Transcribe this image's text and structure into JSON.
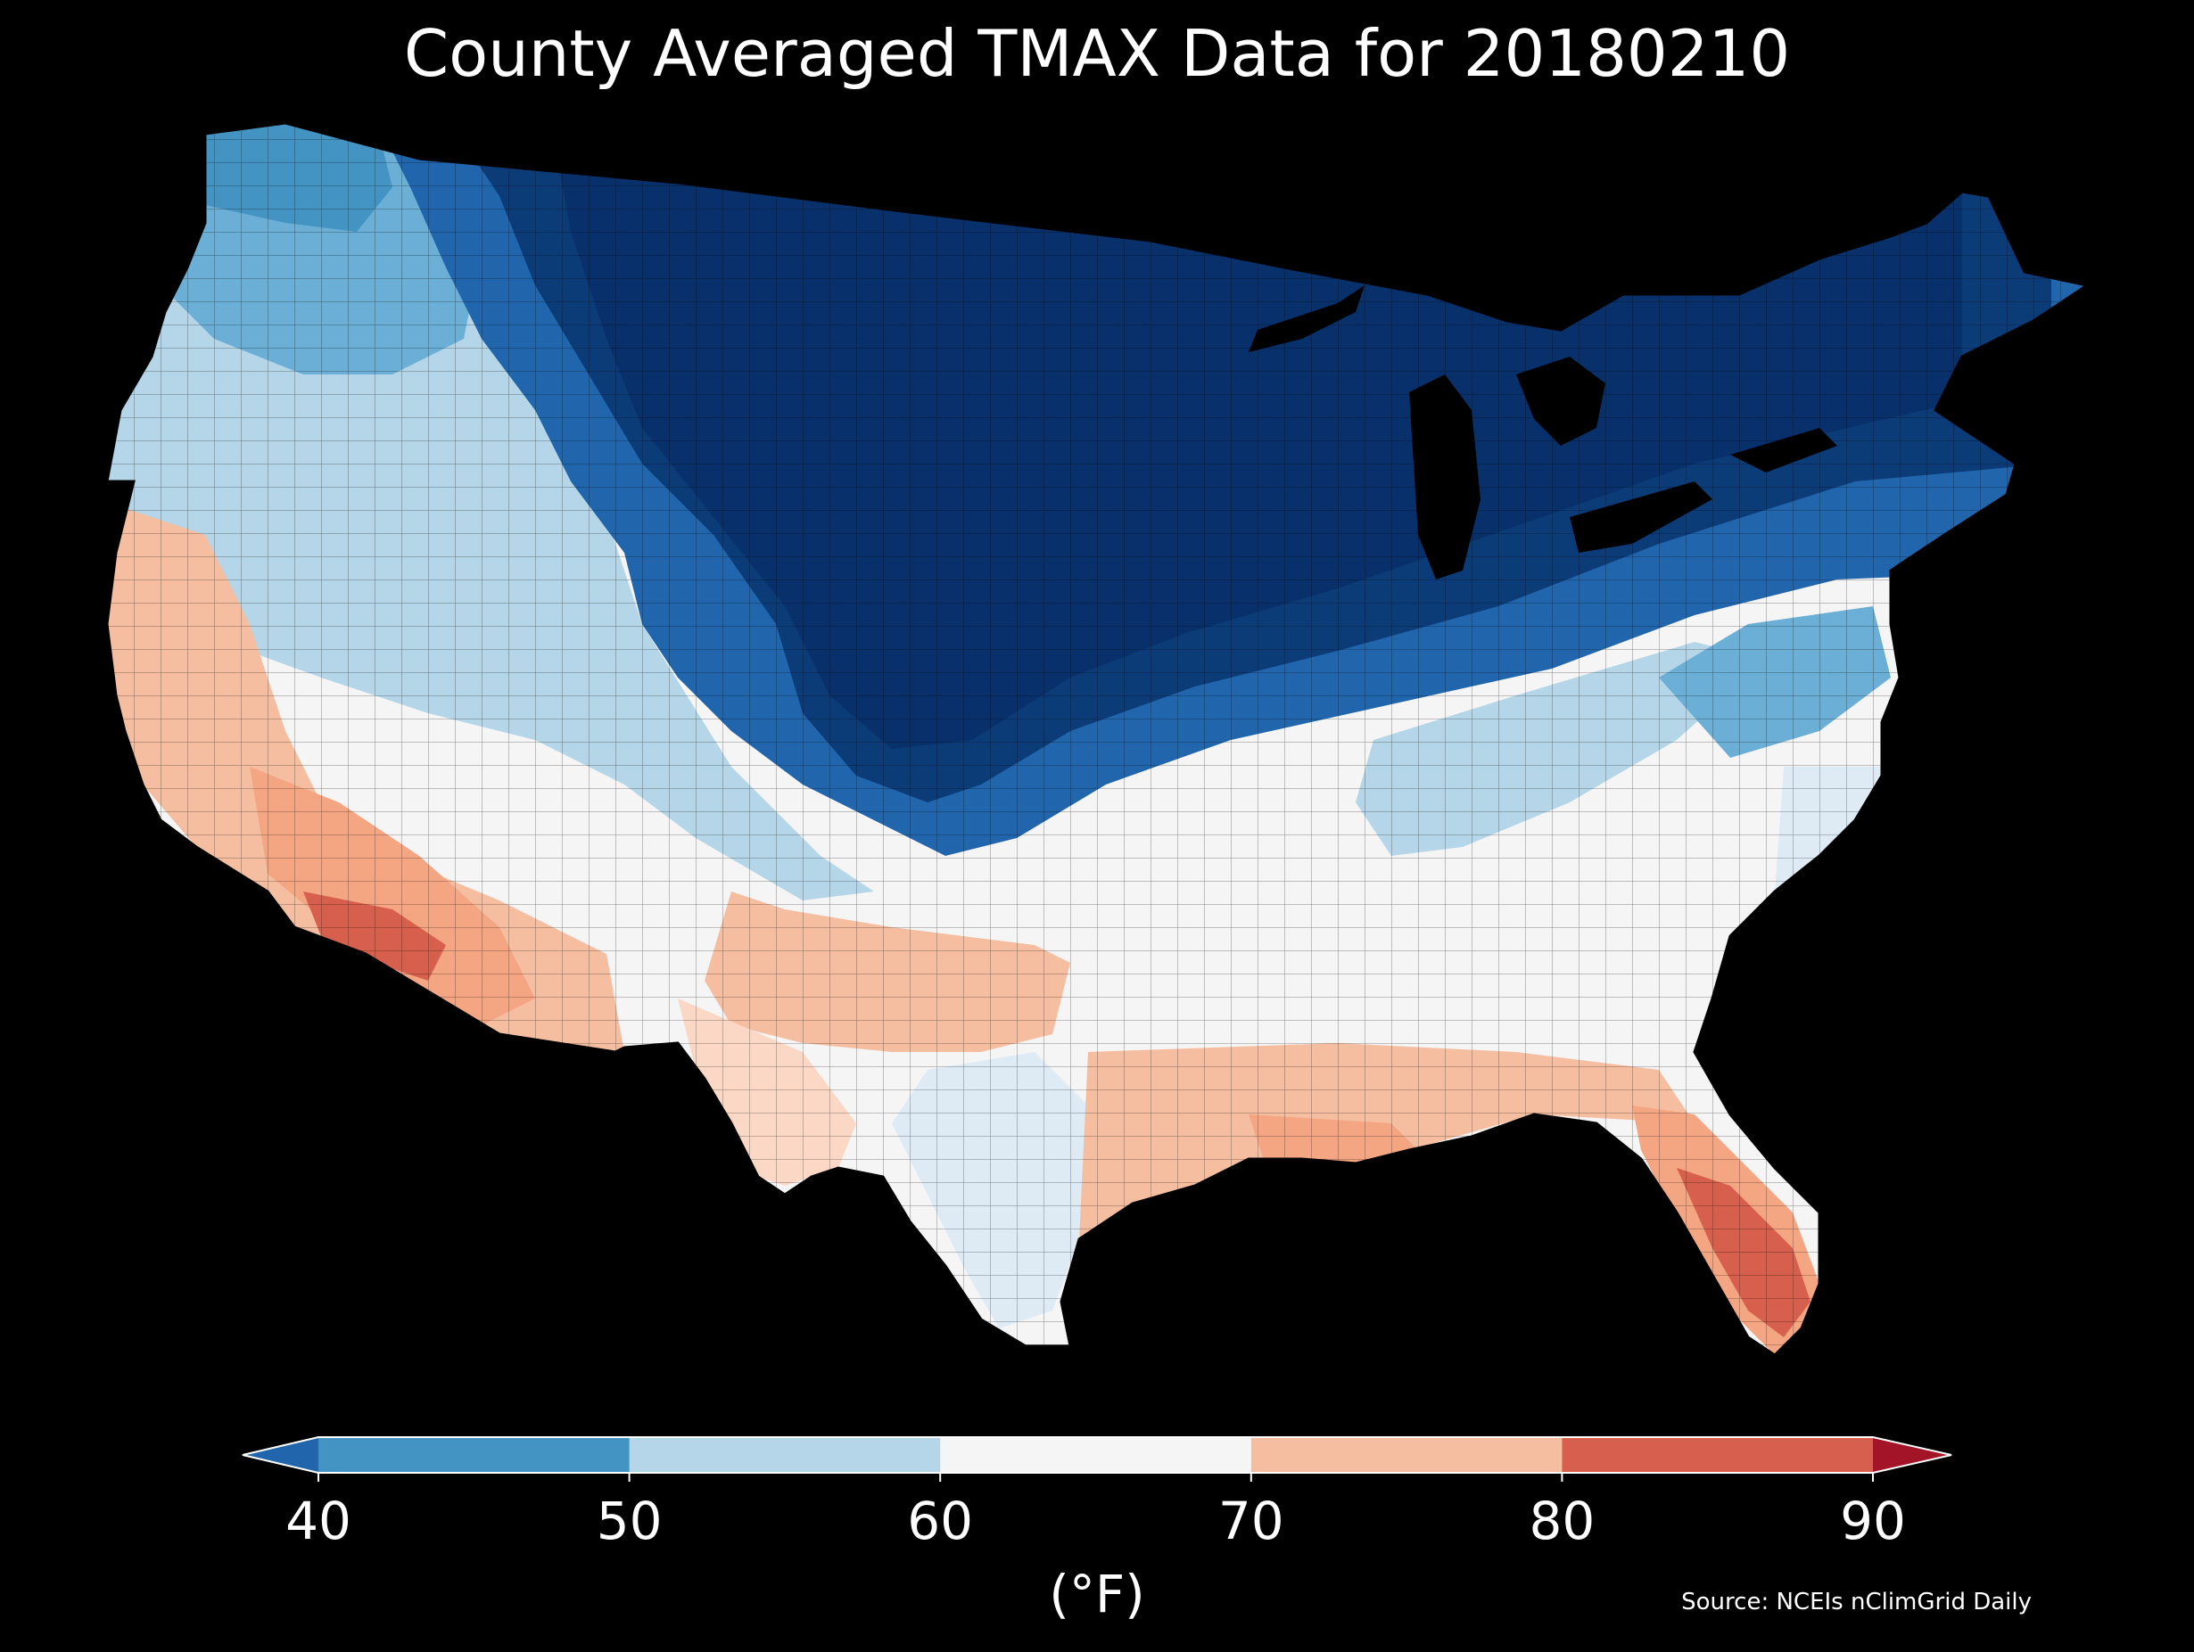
{
  "title": "County Averaged TMAX Data for 20180210",
  "source": "Source: NCEIs nClimGrid Daily",
  "colorbar": {
    "unit_label": "(°F)",
    "ticks": [
      "40",
      "50",
      "60",
      "70",
      "80",
      "90"
    ],
    "bins": [
      {
        "range": "<40",
        "color": "#2166ac"
      },
      {
        "range": "40-50",
        "color": "#4393c3"
      },
      {
        "range": "50-60",
        "color": "#b4d6e8"
      },
      {
        "range": "60-70",
        "color": "#f5f5f5"
      },
      {
        "range": "70-80",
        "color": "#f6bea0"
      },
      {
        "range": "80-90",
        "color": "#d6604d"
      },
      {
        "range": ">90",
        "color": "#a41429"
      }
    ]
  },
  "map": {
    "background": "#000000",
    "region": "Contiguous United States counties",
    "pattern": "Very cold (<40°F) across northern Plains, Upper Midwest, Great Lakes and Northeast; mild to warm (70-80°F) across Southwest, southern Plains and Gulf Coast; warmest (80-90°F) in southern Arizona and peninsular Florida"
  }
}
